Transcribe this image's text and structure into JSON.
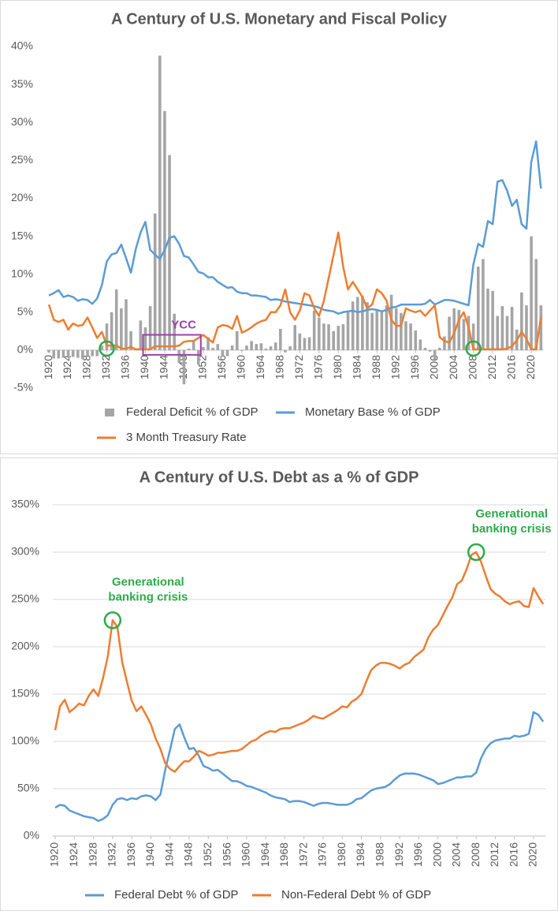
{
  "chart_data": [
    {
      "type": "combo",
      "title": "A Century of U.S. Monetary and Fiscal Policy",
      "x": [
        1920,
        1921,
        1922,
        1923,
        1924,
        1925,
        1926,
        1927,
        1928,
        1929,
        1930,
        1931,
        1932,
        1933,
        1934,
        1935,
        1936,
        1937,
        1938,
        1939,
        1940,
        1941,
        1942,
        1943,
        1944,
        1945,
        1946,
        1947,
        1948,
        1949,
        1950,
        1951,
        1952,
        1953,
        1954,
        1955,
        1956,
        1957,
        1958,
        1959,
        1960,
        1961,
        1962,
        1963,
        1964,
        1965,
        1966,
        1967,
        1968,
        1969,
        1970,
        1971,
        1972,
        1973,
        1974,
        1975,
        1976,
        1977,
        1978,
        1979,
        1980,
        1981,
        1982,
        1983,
        1984,
        1985,
        1986,
        1987,
        1988,
        1989,
        1990,
        1991,
        1992,
        1993,
        1994,
        1995,
        1996,
        1997,
        1998,
        1999,
        2000,
        2001,
        2002,
        2003,
        2004,
        2005,
        2006,
        2007,
        2008,
        2009,
        2010,
        2011,
        2012,
        2013,
        2014,
        2015,
        2016,
        2017,
        2018,
        2019,
        2020,
        2021,
        2022
      ],
      "xlim": [
        1919.5,
        2022.5
      ],
      "xticks": [
        1920,
        1924,
        1928,
        1932,
        1936,
        1940,
        1944,
        1948,
        1952,
        1956,
        1960,
        1964,
        1968,
        1972,
        1976,
        1980,
        1984,
        1988,
        1992,
        1996,
        2000,
        2004,
        2008,
        2012,
        2016,
        2020
      ],
      "ylim": [
        -5,
        40
      ],
      "yticks": [
        {
          "value": -5,
          "label": "-5%"
        },
        {
          "value": 0,
          "label": "0%"
        },
        {
          "value": 5,
          "label": "5%"
        },
        {
          "value": 10,
          "label": "10%"
        },
        {
          "value": 15,
          "label": "15%"
        },
        {
          "value": 20,
          "label": "20%"
        },
        {
          "value": 25,
          "label": "25%"
        },
        {
          "value": 30,
          "label": "30%"
        },
        {
          "value": 35,
          "label": "35%"
        },
        {
          "value": 40,
          "label": "40%"
        }
      ],
      "grid": false,
      "legend": "bottom",
      "series": [
        {
          "name": "Federal Deficit % of GDP",
          "type": "bar",
          "color": "#a5a5a5",
          "values": [
            -0.3,
            -1.1,
            -1.1,
            -1.0,
            -1.0,
            -0.9,
            -1.0,
            -1.2,
            -0.9,
            -0.8,
            -0.8,
            0.6,
            3.5,
            5.0,
            8.0,
            5.5,
            6.7,
            2.5,
            0.1,
            3.9,
            3.0,
            5.8,
            18.0,
            38.8,
            31.5,
            25.7,
            4.8,
            -1.7,
            -4.5,
            0.2,
            1.1,
            -1.9,
            0.4,
            1.7,
            0.3,
            0.8,
            -0.9,
            -0.8,
            0.6,
            2.5,
            -0.1,
            0.6,
            1.2,
            0.8,
            0.9,
            0.2,
            0.5,
            1.0,
            2.8,
            -0.3,
            0.5,
            3.3,
            2.2,
            1.6,
            1.7,
            5.2,
            4.3,
            3.5,
            3.4,
            2.5,
            3.2,
            3.4,
            5.0,
            6.4,
            7.0,
            7.2,
            6.3,
            4.9,
            5.4,
            5.0,
            5.9,
            7.3,
            5.5,
            4.9,
            3.8,
            3.5,
            2.6,
            1.4,
            0.3,
            -0.2,
            -1.3,
            0.3,
            1.8,
            4.4,
            5.5,
            5.3,
            4.1,
            4.5,
            3.5,
            11.0,
            12.0,
            8.1,
            7.8,
            4.5,
            5.8,
            4.5,
            5.7,
            2.7,
            7.6,
            5.9,
            15.0,
            12.0,
            5.9
          ]
        },
        {
          "name": "Monetary Base % of GDP",
          "type": "line",
          "color": "#5b9bd5",
          "values": [
            7.2,
            7.5,
            7.9,
            7.0,
            7.2,
            7.0,
            6.5,
            6.7,
            6.6,
            6.1,
            6.8,
            8.6,
            11.7,
            12.6,
            12.8,
            13.9,
            12.1,
            10.2,
            13.3,
            15.5,
            16.9,
            13.2,
            12.6,
            12.0,
            13.2,
            14.8,
            15.0,
            14.0,
            12.4,
            12.2,
            11.3,
            10.3,
            10.1,
            9.6,
            9.6,
            9.0,
            8.6,
            8.2,
            8.3,
            7.7,
            7.5,
            7.5,
            7.2,
            7.2,
            7.1,
            7.0,
            6.6,
            6.7,
            6.6,
            6.4,
            6.3,
            6.2,
            6.1,
            6.0,
            5.9,
            5.8,
            5.6,
            5.3,
            5.2,
            5.1,
            4.8,
            5.0,
            5.1,
            5.2,
            5.0,
            5.1,
            5.3,
            5.4,
            5.3,
            5.1,
            5.3,
            5.6,
            5.7,
            6.0,
            6.0,
            6.0,
            6.0,
            6.0,
            6.1,
            6.6,
            6.0,
            6.3,
            6.6,
            6.6,
            6.5,
            6.3,
            6.1,
            5.9,
            11.3,
            14.0,
            13.6,
            17.0,
            16.6,
            22.2,
            22.4,
            21.0,
            19.0,
            19.8,
            16.6,
            16.0,
            24.8,
            27.5,
            21.3
          ]
        },
        {
          "name": "3 Month Treasury Rate",
          "type": "line",
          "color": "#ed7d31",
          "values": [
            6.0,
            4.0,
            3.7,
            4.0,
            2.7,
            3.5,
            3.2,
            3.3,
            4.3,
            3.0,
            1.6,
            2.4,
            0.6,
            0.6,
            0.6,
            0.2,
            0.2,
            0.4,
            0.1,
            0.1,
            0.1,
            0.1,
            0.5,
            0.5,
            0.5,
            0.5,
            0.5,
            0.6,
            1.1,
            1.2,
            1.2,
            1.6,
            2.0,
            1.5,
            1.0,
            3.0,
            3.3,
            3.2,
            2.8,
            4.5,
            2.3,
            2.6,
            3.0,
            3.5,
            3.8,
            4.0,
            5.0,
            5.0,
            5.9,
            8.0,
            5.0,
            4.0,
            5.2,
            7.5,
            7.2,
            5.5,
            4.5,
            6.5,
            9.5,
            12.5,
            15.5,
            11.0,
            8.0,
            9.0,
            8.0,
            7.0,
            5.5,
            6.0,
            8.0,
            7.5,
            6.5,
            4.0,
            3.2,
            3.2,
            5.5,
            5.2,
            5.0,
            5.2,
            4.5,
            5.2,
            5.9,
            1.7,
            1.2,
            1.0,
            2.2,
            4.0,
            5.0,
            3.0,
            0.1,
            0.1,
            0.1,
            0.1,
            0.1,
            0.1,
            0.1,
            0.2,
            0.5,
            1.3,
            2.4,
            1.5,
            0.1,
            0.1,
            4.4
          ]
        }
      ],
      "highlights": [
        1932,
        2008
      ],
      "annotations": [
        {
          "text": "YCC",
          "x": [
            1940,
            1951
          ]
        }
      ]
    },
    {
      "type": "line",
      "title": "A Century of U.S. Debt as a % of GDP",
      "x": [
        1920,
        1921,
        1922,
        1923,
        1924,
        1925,
        1926,
        1927,
        1928,
        1929,
        1930,
        1931,
        1932,
        1933,
        1934,
        1935,
        1936,
        1937,
        1938,
        1939,
        1940,
        1941,
        1942,
        1943,
        1944,
        1945,
        1946,
        1947,
        1948,
        1949,
        1950,
        1951,
        1952,
        1953,
        1954,
        1955,
        1956,
        1957,
        1958,
        1959,
        1960,
        1961,
        1962,
        1963,
        1964,
        1965,
        1966,
        1967,
        1968,
        1969,
        1970,
        1971,
        1972,
        1973,
        1974,
        1975,
        1976,
        1977,
        1978,
        1979,
        1980,
        1981,
        1982,
        1983,
        1984,
        1985,
        1986,
        1987,
        1988,
        1989,
        1990,
        1991,
        1992,
        1993,
        1994,
        1995,
        1996,
        1997,
        1998,
        1999,
        2000,
        2001,
        2002,
        2003,
        2004,
        2005,
        2006,
        2007,
        2008,
        2009,
        2010,
        2011,
        2012,
        2013,
        2014,
        2015,
        2016,
        2017,
        2018,
        2019,
        2020,
        2021,
        2022
      ],
      "xlim": [
        1919.5,
        2022.5
      ],
      "xticks": [
        1920,
        1924,
        1928,
        1932,
        1936,
        1940,
        1944,
        1948,
        1952,
        1956,
        1960,
        1964,
        1968,
        1972,
        1976,
        1980,
        1984,
        1988,
        1992,
        1996,
        2000,
        2004,
        2008,
        2012,
        2016,
        2020
      ],
      "ylim": [
        0,
        350
      ],
      "yticks": [
        {
          "value": 0,
          "label": "0%"
        },
        {
          "value": 50,
          "label": "50%"
        },
        {
          "value": 100,
          "label": "100%"
        },
        {
          "value": 150,
          "label": "150%"
        },
        {
          "value": 200,
          "label": "200%"
        },
        {
          "value": 250,
          "label": "250%"
        },
        {
          "value": 300,
          "label": "300%"
        },
        {
          "value": 350,
          "label": "350%"
        }
      ],
      "grid": true,
      "legend": "bottom",
      "series": [
        {
          "name": "Federal Debt % of GDP",
          "type": "line",
          "color": "#5b9bd5",
          "values": [
            30,
            33,
            32,
            27,
            25,
            23,
            21,
            20,
            19,
            16,
            18,
            22,
            33,
            39,
            40,
            38,
            40,
            39,
            42,
            43,
            42,
            38,
            44,
            70,
            91,
            113,
            118,
            104,
            92,
            93,
            85,
            74,
            72,
            69,
            70,
            66,
            62,
            58,
            58,
            56,
            53,
            52,
            50,
            48,
            46,
            43,
            41,
            40,
            39,
            36,
            37,
            37,
            36,
            34,
            32,
            34,
            35,
            35,
            34,
            33,
            33,
            33,
            35,
            39,
            40,
            44,
            48,
            50,
            51,
            52,
            55,
            60,
            64,
            66,
            66,
            66,
            65,
            63,
            61,
            59,
            55,
            56,
            58,
            60,
            62,
            62,
            63,
            63,
            67,
            82,
            92,
            98,
            101,
            102,
            103,
            103,
            106,
            105,
            106,
            108,
            131,
            128,
            121
          ]
        },
        {
          "name": "Non-Federal Debt % of GDP",
          "type": "line",
          "color": "#ed7d31",
          "values": [
            112,
            137,
            144,
            131,
            135,
            140,
            138,
            148,
            155,
            148,
            167,
            190,
            228,
            221,
            184,
            163,
            143,
            132,
            137,
            128,
            118,
            103,
            92,
            77,
            71,
            68,
            74,
            79,
            79,
            84,
            90,
            88,
            85,
            86,
            88,
            88,
            89,
            90,
            90,
            92,
            96,
            100,
            102,
            106,
            109,
            111,
            110,
            113,
            114,
            114,
            116,
            118,
            120,
            123,
            127,
            125,
            124,
            127,
            130,
            133,
            137,
            136,
            142,
            145,
            150,
            163,
            175,
            180,
            183,
            183,
            182,
            180,
            177,
            181,
            183,
            189,
            193,
            197,
            210,
            218,
            223,
            233,
            243,
            252,
            266,
            270,
            282,
            297,
            300,
            290,
            275,
            261,
            256,
            253,
            248,
            245,
            247,
            248,
            243,
            242,
            262,
            253,
            245
          ]
        }
      ],
      "annotations": [
        {
          "text": [
            "Generational",
            "banking crisis"
          ],
          "x": 1932
        },
        {
          "text": [
            "Generational",
            "banking crisis"
          ],
          "x": 2008
        }
      ]
    }
  ]
}
